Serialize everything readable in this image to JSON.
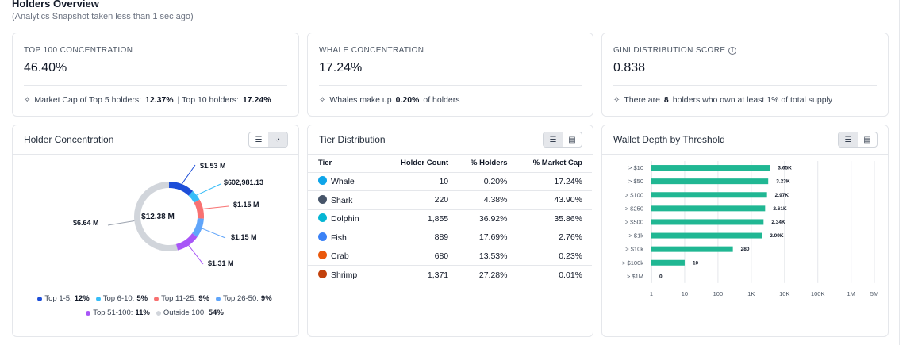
{
  "header": {
    "title": "Holders Overview",
    "subtitle": "(Analytics Snapshot taken less than 1 sec ago)"
  },
  "stats": {
    "top100": {
      "label": "TOP 100 CONCENTRATION",
      "value": "46.40%",
      "foot_pre": "Market Cap of Top 5 holders:",
      "foot_v1": "12.37%",
      "foot_mid": "| Top 10 holders:",
      "foot_v2": "17.24%"
    },
    "whale": {
      "label": "WHALE CONCENTRATION",
      "value": "17.24%",
      "foot_pre": "Whales make up",
      "foot_v1": "0.20%",
      "foot_post": "of holders"
    },
    "gini": {
      "label": "GINI DISTRIBUTION SCORE",
      "value": "0.838",
      "foot_pre": "There are",
      "foot_v1": "8",
      "foot_post": "holders who own at least 1% of total supply"
    }
  },
  "holder_concentration": {
    "title": "Holder Concentration",
    "center_label": "$12.38 M",
    "callouts": [
      "$1.53 M",
      "$602,981.13",
      "$1.15 M",
      "$1.15 M",
      "$1.31 M",
      "$6.64 M"
    ],
    "legend": [
      {
        "label": "Top 1-5:",
        "value": "12%",
        "color": "#1d4ed8"
      },
      {
        "label": "Top 6-10:",
        "value": "5%",
        "color": "#38bdf8"
      },
      {
        "label": "Top 11-25:",
        "value": "9%",
        "color": "#f87171"
      },
      {
        "label": "Top 26-50:",
        "value": "9%",
        "color": "#60a5fa"
      },
      {
        "label": "Top 51-100:",
        "value": "11%",
        "color": "#a855f7"
      },
      {
        "label": "Outside 100:",
        "value": "54%",
        "color": "#d1d5db"
      }
    ]
  },
  "tier_distribution": {
    "title": "Tier Distribution",
    "columns": [
      "Tier",
      "Holder Count",
      "% Holders",
      "% Market Cap"
    ],
    "rows": [
      {
        "tier": "Whale",
        "count": "10",
        "holders": "0.20%",
        "mcap": "17.24%",
        "icon": "whale-icon",
        "color": "#0ea5e9"
      },
      {
        "tier": "Shark",
        "count": "220",
        "holders": "4.38%",
        "mcap": "43.90%",
        "icon": "shark-icon",
        "color": "#475569"
      },
      {
        "tier": "Dolphin",
        "count": "1,855",
        "holders": "36.92%",
        "mcap": "35.86%",
        "icon": "dolphin-icon",
        "color": "#06b6d4"
      },
      {
        "tier": "Fish",
        "count": "889",
        "holders": "17.69%",
        "mcap": "2.76%",
        "icon": "fish-icon",
        "color": "#3b82f6"
      },
      {
        "tier": "Crab",
        "count": "680",
        "holders": "13.53%",
        "mcap": "0.23%",
        "icon": "crab-icon",
        "color": "#ea580c"
      },
      {
        "tier": "Shrimp",
        "count": "1,371",
        "holders": "27.28%",
        "mcap": "0.01%",
        "icon": "shrimp-icon",
        "color": "#c2410c"
      }
    ]
  },
  "wallet_depth": {
    "title": "Wallet Depth by Threshold"
  },
  "chart_data": [
    {
      "type": "pie",
      "title": "Holder Concentration",
      "categories": [
        "Top 1-5",
        "Top 6-10",
        "Top 11-25",
        "Top 26-50",
        "Top 51-100",
        "Outside 100"
      ],
      "values": [
        12,
        5,
        9,
        9,
        11,
        54
      ],
      "value_labels": [
        "$1.53 M",
        "$602,981.13",
        "$1.15 M",
        "$1.15 M",
        "$1.31 M",
        "$6.64 M"
      ],
      "colors": [
        "#1d4ed8",
        "#38bdf8",
        "#f87171",
        "#60a5fa",
        "#a855f7",
        "#d1d5db"
      ],
      "center_label": "$12.38 M",
      "legend": "bottom"
    },
    {
      "type": "bar",
      "orientation": "horizontal",
      "title": "Wallet Depth by Threshold",
      "categories": [
        "> $10",
        "> $50",
        "> $100",
        "> $250",
        "> $500",
        "> $1k",
        "> $10k",
        "> $100k",
        "> $1M"
      ],
      "values": [
        3650,
        3230,
        2970,
        2610,
        2340,
        2090,
        280,
        10,
        0
      ],
      "value_labels": [
        "3.65K",
        "3.23K",
        "2.97K",
        "2.61K",
        "2.34K",
        "2.09K",
        "280",
        "10",
        "0"
      ],
      "x_scale": "log",
      "x_ticks": [
        "1",
        "10",
        "100",
        "1K",
        "10K",
        "100K",
        "1M",
        "5M"
      ],
      "x_tick_values": [
        1,
        10,
        100,
        1000,
        10000,
        100000,
        1000000,
        5000000
      ],
      "color": "#20b793",
      "grid": true
    }
  ]
}
